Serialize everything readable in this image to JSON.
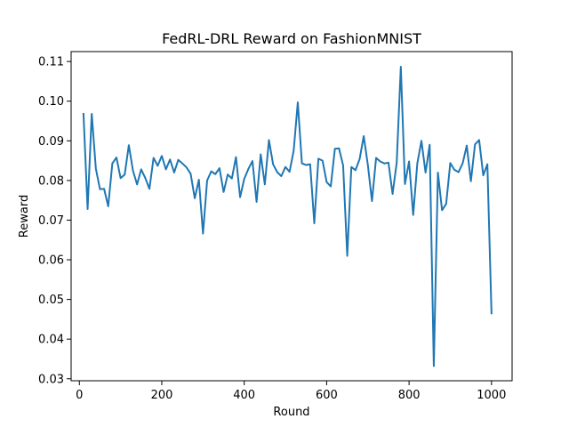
{
  "chart_data": {
    "type": "line",
    "title": "FedRL-DRL Reward on FashionMNIST",
    "xlabel": "Round",
    "ylabel": "Reward",
    "xlim": [
      -20,
      1050
    ],
    "ylim": [
      0.0295,
      0.1125
    ],
    "xticks": [
      0,
      200,
      400,
      600,
      800,
      1000
    ],
    "yticks": [
      0.03,
      0.04,
      0.05,
      0.06,
      0.07,
      0.08,
      0.09,
      0.1,
      0.11
    ],
    "xtick_labels": [
      "0",
      "200",
      "400",
      "600",
      "800",
      "1000"
    ],
    "ytick_labels": [
      "0.03",
      "0.04",
      "0.05",
      "0.06",
      "0.07",
      "0.08",
      "0.09",
      "0.10",
      "0.11"
    ],
    "grid": false,
    "series": [
      {
        "color": "#1f77b4",
        "x": [
          10,
          20,
          30,
          40,
          50,
          60,
          70,
          80,
          90,
          100,
          110,
          120,
          130,
          140,
          150,
          160,
          170,
          180,
          190,
          200,
          210,
          220,
          230,
          240,
          250,
          260,
          270,
          280,
          290,
          300,
          310,
          320,
          330,
          340,
          350,
          360,
          370,
          380,
          390,
          400,
          410,
          420,
          430,
          440,
          450,
          460,
          470,
          480,
          490,
          500,
          510,
          520,
          530,
          540,
          550,
          560,
          570,
          580,
          590,
          600,
          610,
          620,
          630,
          640,
          650,
          660,
          670,
          680,
          690,
          700,
          710,
          720,
          730,
          740,
          750,
          760,
          770,
          780,
          790,
          800,
          810,
          820,
          830,
          840,
          850,
          860,
          870,
          880,
          890,
          900,
          910,
          920,
          930,
          940,
          950,
          960,
          970,
          980,
          990,
          1000
        ],
        "y": [
          0.0968,
          0.0728,
          0.0968,
          0.083,
          0.0778,
          0.0779,
          0.0735,
          0.0843,
          0.0858,
          0.0806,
          0.0815,
          0.0889,
          0.0825,
          0.079,
          0.0828,
          0.0806,
          0.0779,
          0.0857,
          0.0837,
          0.0862,
          0.0828,
          0.0853,
          0.082,
          0.0852,
          0.0843,
          0.0833,
          0.0817,
          0.0755,
          0.0802,
          0.0666,
          0.08,
          0.0823,
          0.0816,
          0.0831,
          0.0771,
          0.0815,
          0.0805,
          0.0859,
          0.0758,
          0.0804,
          0.0829,
          0.0849,
          0.0746,
          0.0866,
          0.079,
          0.0902,
          0.0841,
          0.0821,
          0.0811,
          0.0834,
          0.0822,
          0.0875,
          0.0997,
          0.0843,
          0.0839,
          0.0841,
          0.0692,
          0.0855,
          0.085,
          0.0796,
          0.0785,
          0.088,
          0.0881,
          0.0838,
          0.061,
          0.0834,
          0.0826,
          0.0854,
          0.0912,
          0.0839,
          0.0748,
          0.0857,
          0.0848,
          0.0843,
          0.0845,
          0.0766,
          0.0845,
          0.1087,
          0.0791,
          0.0848,
          0.0713,
          0.0843,
          0.09,
          0.082,
          0.089,
          0.0332,
          0.082,
          0.0725,
          0.0741,
          0.0844,
          0.0827,
          0.0821,
          0.0843,
          0.0888,
          0.0798,
          0.0891,
          0.0902,
          0.0813,
          0.0841,
          0.0465
        ]
      }
    ]
  }
}
